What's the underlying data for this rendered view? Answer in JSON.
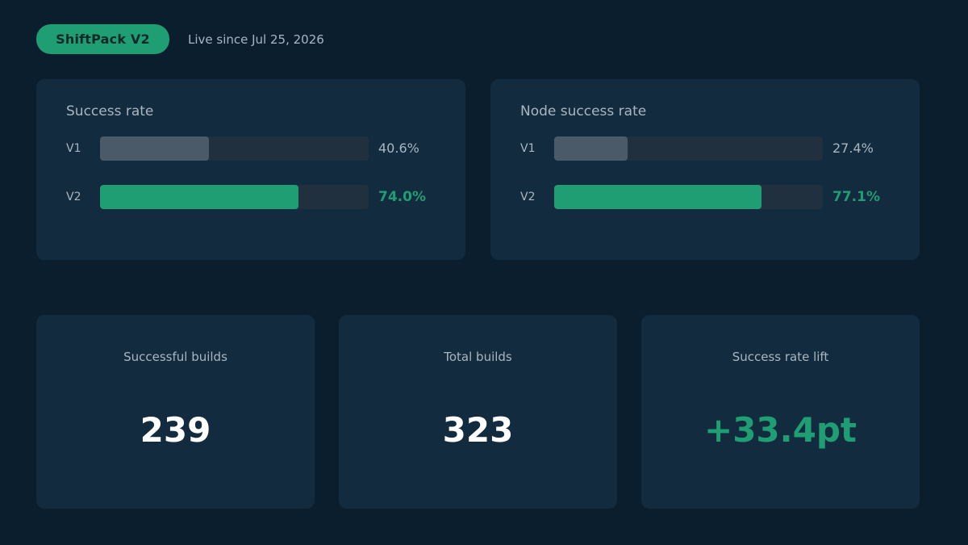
{
  "header": {
    "badge": "ShiftPack V2",
    "since": "Live since Jul 25, 2026"
  },
  "rate_cards": [
    {
      "title": "Success rate",
      "rows": [
        {
          "label": "V1",
          "value_text": "40.6%",
          "fraction": 0.406
        },
        {
          "label": "V2",
          "value_text": "74.0%",
          "fraction": 0.74
        }
      ]
    },
    {
      "title": "Node success rate",
      "rows": [
        {
          "label": "V1",
          "value_text": "27.4%",
          "fraction": 0.274
        },
        {
          "label": "V2",
          "value_text": "77.1%",
          "fraction": 0.771
        }
      ]
    }
  ],
  "stats": [
    {
      "label": "Successful builds",
      "value": "239"
    },
    {
      "label": "Total builds",
      "value": "323"
    },
    {
      "label": "Success rate lift",
      "value": "+33.4pt"
    }
  ],
  "colors": {
    "background": "#0b1e2d",
    "card": "#132b3e",
    "accent": "#1f9e74",
    "muted_bar": "#4a5a68",
    "track": "#21303f",
    "muted_text": "#a9b6c1"
  }
}
